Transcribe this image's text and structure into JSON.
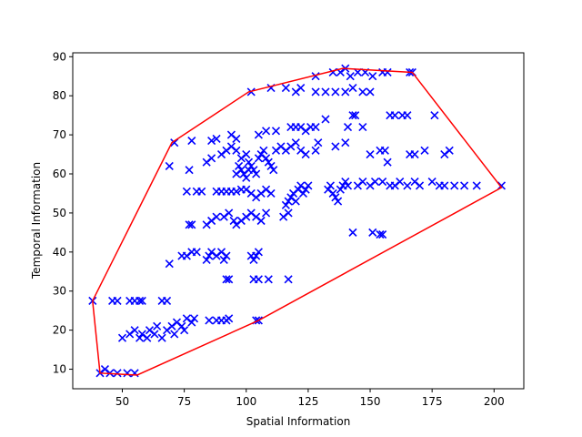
{
  "chart_data": {
    "type": "scatter",
    "title": "",
    "xlabel": "Spatial Information",
    "ylabel": "Temporal Information",
    "xlim": [
      30,
      212
    ],
    "ylim": [
      5,
      91
    ],
    "xticks": [
      50,
      75,
      100,
      125,
      150,
      175,
      200
    ],
    "yticks": [
      10,
      20,
      30,
      40,
      50,
      60,
      70,
      80,
      90
    ],
    "grid": false,
    "marker": "x",
    "marker_color": "#0000ff",
    "hull_color": "#ff0000",
    "hull": [
      [
        38,
        27.5
      ],
      [
        41,
        9
      ],
      [
        56,
        8.5
      ],
      [
        105,
        22.5
      ],
      [
        203,
        56.5
      ],
      [
        167,
        86
      ],
      [
        139,
        87
      ],
      [
        101,
        81
      ],
      [
        70,
        68
      ],
      [
        38,
        27.5
      ]
    ],
    "points": [
      [
        38,
        27.5
      ],
      [
        41,
        9
      ],
      [
        43,
        10
      ],
      [
        45,
        9
      ],
      [
        48,
        9
      ],
      [
        52,
        9
      ],
      [
        55,
        9
      ],
      [
        46,
        27.5
      ],
      [
        48,
        27.5
      ],
      [
        53,
        27.5
      ],
      [
        55,
        27.5
      ],
      [
        57,
        27.5
      ],
      [
        58,
        27.5
      ],
      [
        66,
        27.5
      ],
      [
        68,
        27.5
      ],
      [
        50,
        18
      ],
      [
        53,
        19
      ],
      [
        55,
        20
      ],
      [
        57,
        18
      ],
      [
        58,
        19
      ],
      [
        60,
        18
      ],
      [
        61,
        20
      ],
      [
        63,
        19
      ],
      [
        64,
        21
      ],
      [
        66,
        18
      ],
      [
        68,
        20
      ],
      [
        70,
        21
      ],
      [
        71,
        19
      ],
      [
        72,
        22
      ],
      [
        74,
        21
      ],
      [
        75,
        20
      ],
      [
        76,
        23
      ],
      [
        78,
        22
      ],
      [
        79,
        23
      ],
      [
        85,
        22.5
      ],
      [
        88,
        22.5
      ],
      [
        90,
        22.5
      ],
      [
        92,
        22.5
      ],
      [
        93,
        23
      ],
      [
        104,
        22.5
      ],
      [
        105,
        22.5
      ],
      [
        69,
        37
      ],
      [
        74,
        39
      ],
      [
        76,
        39
      ],
      [
        78,
        40
      ],
      [
        80,
        40
      ],
      [
        84,
        38
      ],
      [
        85,
        39
      ],
      [
        86,
        40
      ],
      [
        88,
        39
      ],
      [
        90,
        40
      ],
      [
        91,
        38
      ],
      [
        92,
        39
      ],
      [
        92,
        33
      ],
      [
        93,
        33
      ],
      [
        103,
        33
      ],
      [
        105,
        33
      ],
      [
        109,
        33
      ],
      [
        117,
        33
      ],
      [
        102,
        39
      ],
      [
        104,
        39
      ],
      [
        105,
        40
      ],
      [
        103,
        38
      ],
      [
        77,
        47
      ],
      [
        78,
        47
      ],
      [
        84,
        47
      ],
      [
        86,
        48
      ],
      [
        88,
        49
      ],
      [
        91,
        49
      ],
      [
        93,
        50
      ],
      [
        95,
        48
      ],
      [
        96,
        47
      ],
      [
        98,
        48
      ],
      [
        100,
        49
      ],
      [
        102,
        50
      ],
      [
        104,
        49
      ],
      [
        106,
        48
      ],
      [
        108,
        50
      ],
      [
        115,
        49
      ],
      [
        117,
        50
      ],
      [
        76,
        55.5
      ],
      [
        80,
        55.5
      ],
      [
        82,
        55.5
      ],
      [
        88,
        55.5
      ],
      [
        90,
        55.5
      ],
      [
        92,
        55.5
      ],
      [
        94,
        55.5
      ],
      [
        96,
        55.5
      ],
      [
        98,
        56
      ],
      [
        100,
        56
      ],
      [
        102,
        55
      ],
      [
        104,
        54
      ],
      [
        106,
        55
      ],
      [
        108,
        56
      ],
      [
        110,
        55
      ],
      [
        116,
        52
      ],
      [
        117,
        53
      ],
      [
        118,
        54
      ],
      [
        119,
        55
      ],
      [
        120,
        53
      ],
      [
        121,
        56
      ],
      [
        122,
        57
      ],
      [
        123,
        55
      ],
      [
        124,
        56
      ],
      [
        125,
        57
      ],
      [
        133,
        56
      ],
      [
        134,
        57
      ],
      [
        135,
        55
      ],
      [
        136,
        54
      ],
      [
        137,
        53
      ],
      [
        138,
        56
      ],
      [
        139,
        57
      ],
      [
        140,
        58
      ],
      [
        141,
        57
      ],
      [
        145,
        57
      ],
      [
        147,
        58
      ],
      [
        150,
        57
      ],
      [
        152,
        58
      ],
      [
        155,
        58
      ],
      [
        158,
        57
      ],
      [
        160,
        57
      ],
      [
        162,
        58
      ],
      [
        165,
        57
      ],
      [
        168,
        58
      ],
      [
        170,
        57
      ],
      [
        175,
        58
      ],
      [
        178,
        57
      ],
      [
        180,
        57
      ],
      [
        184,
        57
      ],
      [
        188,
        57
      ],
      [
        193,
        57
      ],
      [
        203,
        57
      ],
      [
        143,
        45
      ],
      [
        151,
        45
      ],
      [
        154,
        44.5
      ],
      [
        155,
        44.5
      ],
      [
        69,
        62
      ],
      [
        77,
        61
      ],
      [
        84,
        63
      ],
      [
        86,
        64
      ],
      [
        90,
        65
      ],
      [
        92,
        66
      ],
      [
        94,
        67
      ],
      [
        96,
        66
      ],
      [
        98,
        64
      ],
      [
        100,
        65
      ],
      [
        101,
        63
      ],
      [
        102,
        62
      ],
      [
        103,
        61
      ],
      [
        104,
        60
      ],
      [
        105,
        64
      ],
      [
        106,
        65
      ],
      [
        107,
        66
      ],
      [
        108,
        64
      ],
      [
        109,
        63
      ],
      [
        110,
        62
      ],
      [
        111,
        61
      ],
      [
        96,
        60
      ],
      [
        97,
        62
      ],
      [
        98,
        61
      ],
      [
        99,
        60
      ],
      [
        100,
        59
      ],
      [
        101,
        61
      ],
      [
        112,
        66
      ],
      [
        114,
        67
      ],
      [
        116,
        66
      ],
      [
        118,
        67
      ],
      [
        120,
        68
      ],
      [
        122,
        66
      ],
      [
        124,
        65
      ],
      [
        128,
        66
      ],
      [
        129,
        68
      ],
      [
        105,
        70
      ],
      [
        108,
        71
      ],
      [
        112,
        71
      ],
      [
        118,
        72
      ],
      [
        120,
        72
      ],
      [
        122,
        72
      ],
      [
        124,
        71
      ],
      [
        126,
        72
      ],
      [
        128,
        72
      ],
      [
        132,
        74
      ],
      [
        71,
        68
      ],
      [
        78,
        68.5
      ],
      [
        86,
        68.5
      ],
      [
        88,
        69
      ],
      [
        94,
        70
      ],
      [
        96,
        69
      ],
      [
        136,
        67
      ],
      [
        140,
        68
      ],
      [
        141,
        72
      ],
      [
        143,
        75
      ],
      [
        144,
        75
      ],
      [
        147,
        72
      ],
      [
        150,
        65
      ],
      [
        154,
        66
      ],
      [
        156,
        66
      ],
      [
        157,
        63
      ],
      [
        158,
        75
      ],
      [
        160,
        75
      ],
      [
        163,
        75
      ],
      [
        165,
        75
      ],
      [
        166,
        65
      ],
      [
        168,
        65
      ],
      [
        172,
        66
      ],
      [
        176,
        75
      ],
      [
        180,
        65
      ],
      [
        182,
        66
      ],
      [
        102,
        81
      ],
      [
        110,
        82
      ],
      [
        116,
        82
      ],
      [
        120,
        81
      ],
      [
        122,
        82
      ],
      [
        128,
        81
      ],
      [
        132,
        81
      ],
      [
        136,
        81
      ],
      [
        140,
        81
      ],
      [
        143,
        82
      ],
      [
        147,
        81
      ],
      [
        150,
        81
      ],
      [
        128,
        85
      ],
      [
        135,
        86
      ],
      [
        138,
        86
      ],
      [
        140,
        87
      ],
      [
        142,
        85
      ],
      [
        145,
        86
      ],
      [
        148,
        86
      ],
      [
        151,
        85
      ],
      [
        155,
        86
      ],
      [
        157,
        86
      ],
      [
        166,
        86
      ],
      [
        167,
        86
      ]
    ]
  }
}
